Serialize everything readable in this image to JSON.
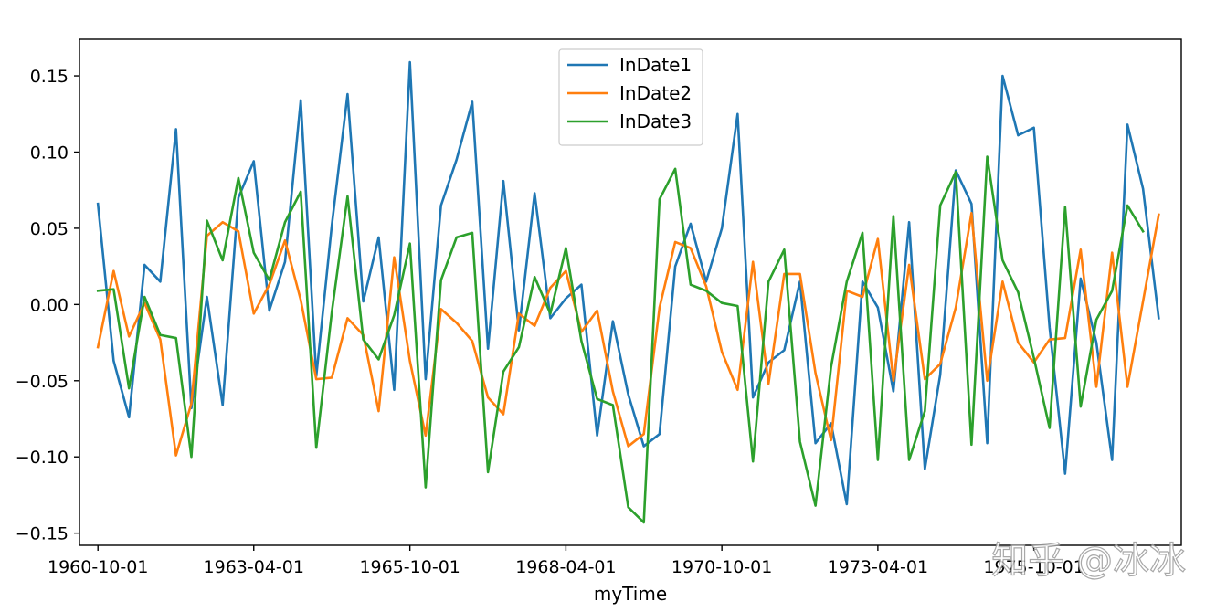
{
  "chart_data": {
    "type": "line",
    "title": "",
    "xlabel": "myTime",
    "ylabel": "",
    "x_start": "1960-10-01",
    "x_step_months": 3,
    "x_ticks": [
      "1960-10-01",
      "1963-04-01",
      "1965-10-01",
      "1968-04-01",
      "1970-10-01",
      "1973-04-01",
      "1975-10-01"
    ],
    "x_range": [
      "1960-06-15",
      "1978-02-10"
    ],
    "y_ticks": [
      -0.15,
      -0.1,
      -0.05,
      0.0,
      0.05,
      0.1,
      0.15
    ],
    "y_tick_labels": [
      "−0.15",
      "−0.10",
      "−0.05",
      "0.00",
      "0.05",
      "0.10",
      "0.15"
    ],
    "ylim": [
      -0.158,
      0.174
    ],
    "grid": false,
    "legend_position": "top-center",
    "series": [
      {
        "name": "InDate1",
        "color": "#1f77b4",
        "values": [
          0.066,
          -0.037,
          -0.074,
          0.026,
          0.015,
          0.115,
          -0.068,
          0.005,
          -0.066,
          0.07,
          0.094,
          -0.004,
          0.028,
          0.134,
          -0.047,
          0.052,
          0.138,
          0.002,
          0.044,
          -0.056,
          0.159,
          -0.049,
          0.065,
          0.095,
          0.133,
          -0.029,
          0.081,
          -0.017,
          0.073,
          -0.009,
          0.004,
          0.013,
          -0.086,
          -0.011,
          -0.059,
          -0.093,
          -0.085,
          0.025,
          0.053,
          0.015,
          0.05,
          0.125,
          -0.061,
          -0.038,
          -0.03,
          0.015,
          -0.091,
          -0.078,
          -0.131,
          0.015,
          -0.002,
          -0.057,
          0.054,
          -0.108,
          -0.046,
          0.088,
          0.066,
          -0.091,
          0.15,
          0.111,
          0.116,
          -0.015,
          -0.111,
          0.017,
          -0.025,
          -0.102,
          0.118,
          0.076,
          -0.009
        ]
      },
      {
        "name": "InDate2",
        "color": "#ff7f0e",
        "values": [
          -0.028,
          0.022,
          -0.021,
          0.001,
          -0.023,
          -0.099,
          -0.065,
          0.045,
          0.054,
          0.048,
          -0.006,
          0.013,
          0.042,
          0.003,
          -0.049,
          -0.048,
          -0.009,
          -0.02,
          -0.07,
          0.031,
          -0.037,
          -0.086,
          -0.003,
          -0.012,
          -0.024,
          -0.061,
          -0.072,
          -0.006,
          -0.014,
          0.011,
          0.022,
          -0.018,
          -0.004,
          -0.057,
          -0.093,
          -0.085,
          -0.002,
          0.041,
          0.037,
          0.012,
          -0.031,
          -0.056,
          0.028,
          -0.052,
          0.02,
          0.02,
          -0.045,
          -0.089,
          0.009,
          0.005,
          0.043,
          -0.05,
          0.026,
          -0.049,
          -0.039,
          -0.002,
          0.06,
          -0.05,
          0.015,
          -0.025,
          -0.038,
          -0.023,
          -0.022,
          0.036,
          -0.054,
          0.034,
          -0.054,
          0.002,
          0.059
        ]
      },
      {
        "name": "InDate3",
        "color": "#2ca02c",
        "values": [
          0.009,
          0.01,
          -0.055,
          0.005,
          -0.02,
          -0.022,
          -0.1,
          0.055,
          0.029,
          0.083,
          0.034,
          0.016,
          0.054,
          0.074,
          -0.094,
          -0.005,
          0.071,
          -0.023,
          -0.036,
          -0.007,
          0.04,
          -0.12,
          0.016,
          0.044,
          0.047,
          -0.11,
          -0.044,
          -0.028,
          0.018,
          -0.006,
          0.037,
          -0.024,
          -0.062,
          -0.066,
          -0.133,
          -0.143,
          0.069,
          0.089,
          0.013,
          0.009,
          0.001,
          -0.001,
          -0.103,
          0.015,
          0.036,
          -0.09,
          -0.132,
          -0.041,
          0.015,
          0.047,
          -0.102,
          0.058,
          -0.102,
          -0.07,
          0.065,
          0.087,
          -0.092,
          0.097,
          0.029,
          0.008,
          -0.035,
          -0.081,
          0.064,
          -0.067,
          -0.01,
          0.009,
          0.065,
          0.048
        ]
      }
    ]
  },
  "watermark": {
    "text": "知乎 @冰冰"
  }
}
